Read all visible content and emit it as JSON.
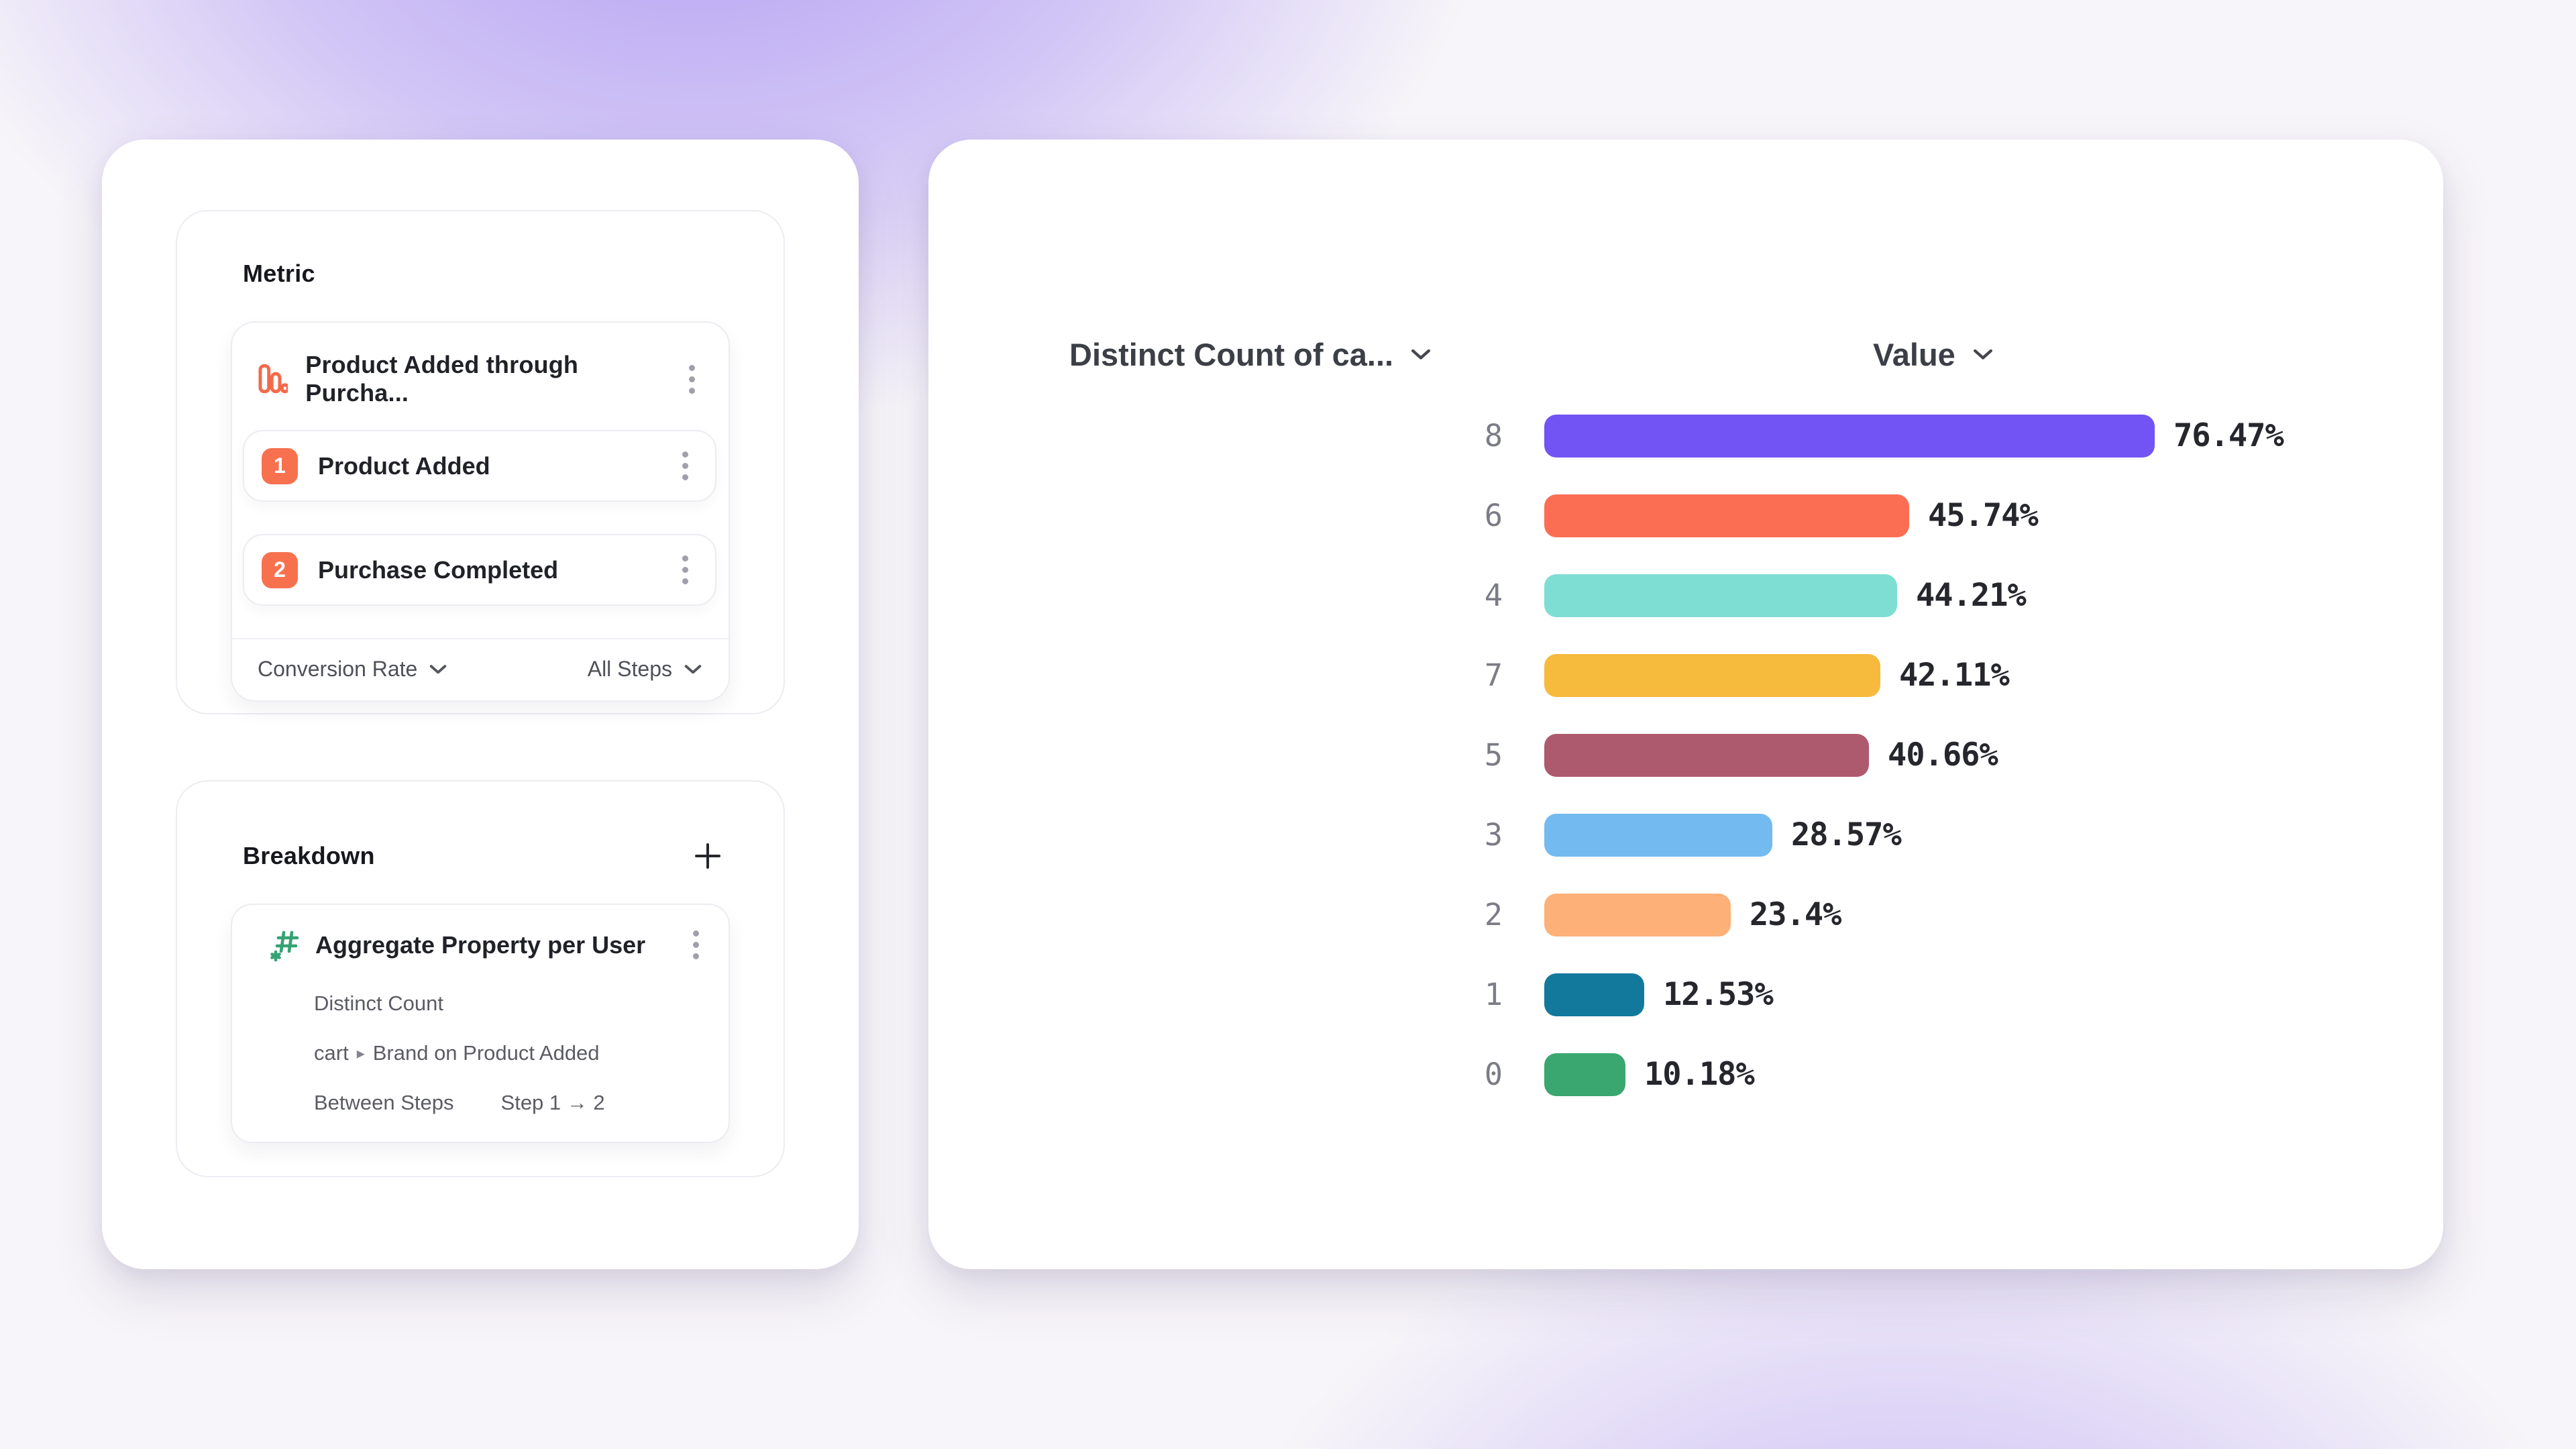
{
  "colors": {
    "badge_coral": "#f8714f",
    "funnel_icon": "#f4694b",
    "hash_green": "#35a273",
    "card_border": "#ececf2"
  },
  "metric_section": {
    "title": "Metric",
    "funnel": {
      "title": "Product Added through Purcha...",
      "steps": [
        {
          "number": "1",
          "label": "Product Added"
        },
        {
          "number": "2",
          "label": "Purchase Completed"
        }
      ],
      "footer": {
        "conversion_dropdown": "Conversion Rate",
        "steps_dropdown": "All Steps"
      }
    }
  },
  "breakdown_section": {
    "title": "Breakdown",
    "item": {
      "title": "Aggregate Property per User",
      "aggregation": "Distinct Count",
      "property_prefix": "cart",
      "property_name": "Brand on Product Added",
      "between_label": "Between Steps",
      "between_value": "Step 1 → 2"
    }
  },
  "chart": {
    "column1": "Distinct Count of ca...",
    "column2": "Value"
  },
  "chart_data": {
    "type": "bar",
    "orientation": "horizontal",
    "title": "",
    "xlabel": "Value",
    "ylabel": "Distinct Count of cart Brand",
    "xlim": [
      0,
      100
    ],
    "grid": false,
    "categories": [
      "8",
      "6",
      "4",
      "7",
      "5",
      "3",
      "2",
      "1",
      "0"
    ],
    "values": [
      76.47,
      45.74,
      44.21,
      42.11,
      40.66,
      28.57,
      23.4,
      12.53,
      10.18
    ],
    "labels": [
      "76.47%",
      "45.74%",
      "44.21%",
      "42.11%",
      "40.66%",
      "28.57%",
      "23.4%",
      "12.53%",
      "10.18%"
    ],
    "colors": [
      "#7253f4",
      "#fc6e53",
      "#7eded3",
      "#f6ba3d",
      "#ae5a6e",
      "#73baf0",
      "#fdb078",
      "#12799c",
      "#3aa770"
    ]
  }
}
